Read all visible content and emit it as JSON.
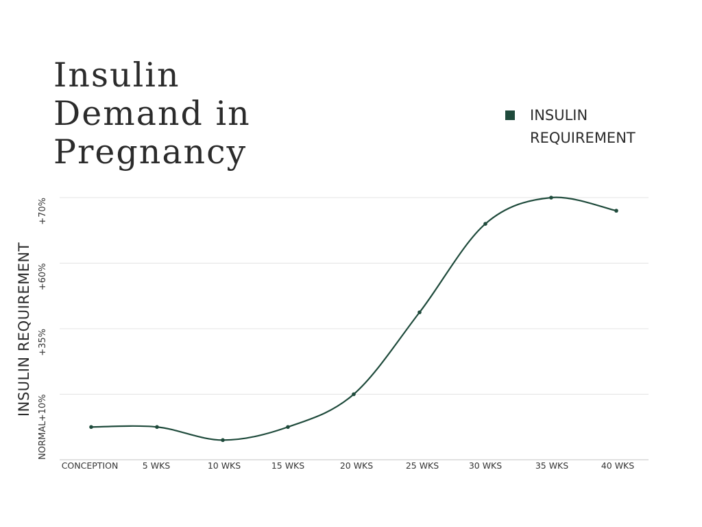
{
  "chart_data": {
    "type": "line",
    "title": "Insulin Demand in Pregnancy",
    "ylabel": "INSULIN REQUIREMENT",
    "xlabel": "",
    "categories": [
      "CONCEPTION",
      "5 WKS",
      "10 WKS",
      "15 WKS",
      "20 WKS",
      "25 WKS",
      "30 WKS",
      "35 WKS",
      "40 WKS"
    ],
    "x_weeks": [
      0,
      5,
      10,
      15,
      20,
      25,
      30,
      35,
      40
    ],
    "y_tick_labels": [
      "NORMAL",
      "+10%",
      "+35%",
      "+60%",
      "+70%"
    ],
    "series": [
      {
        "name": "INSULIN REQUIREMENT",
        "values_tick_units": [
          0.5,
          0.5,
          0.3,
          0.5,
          1.0,
          2.25,
          3.6,
          4.0,
          3.8
        ]
      }
    ],
    "ylim": [
      0,
      4
    ],
    "grid": true,
    "legend_position": "top-right",
    "colors": {
      "series": "#1e4a3b",
      "grid": "#e3e3e3"
    }
  }
}
